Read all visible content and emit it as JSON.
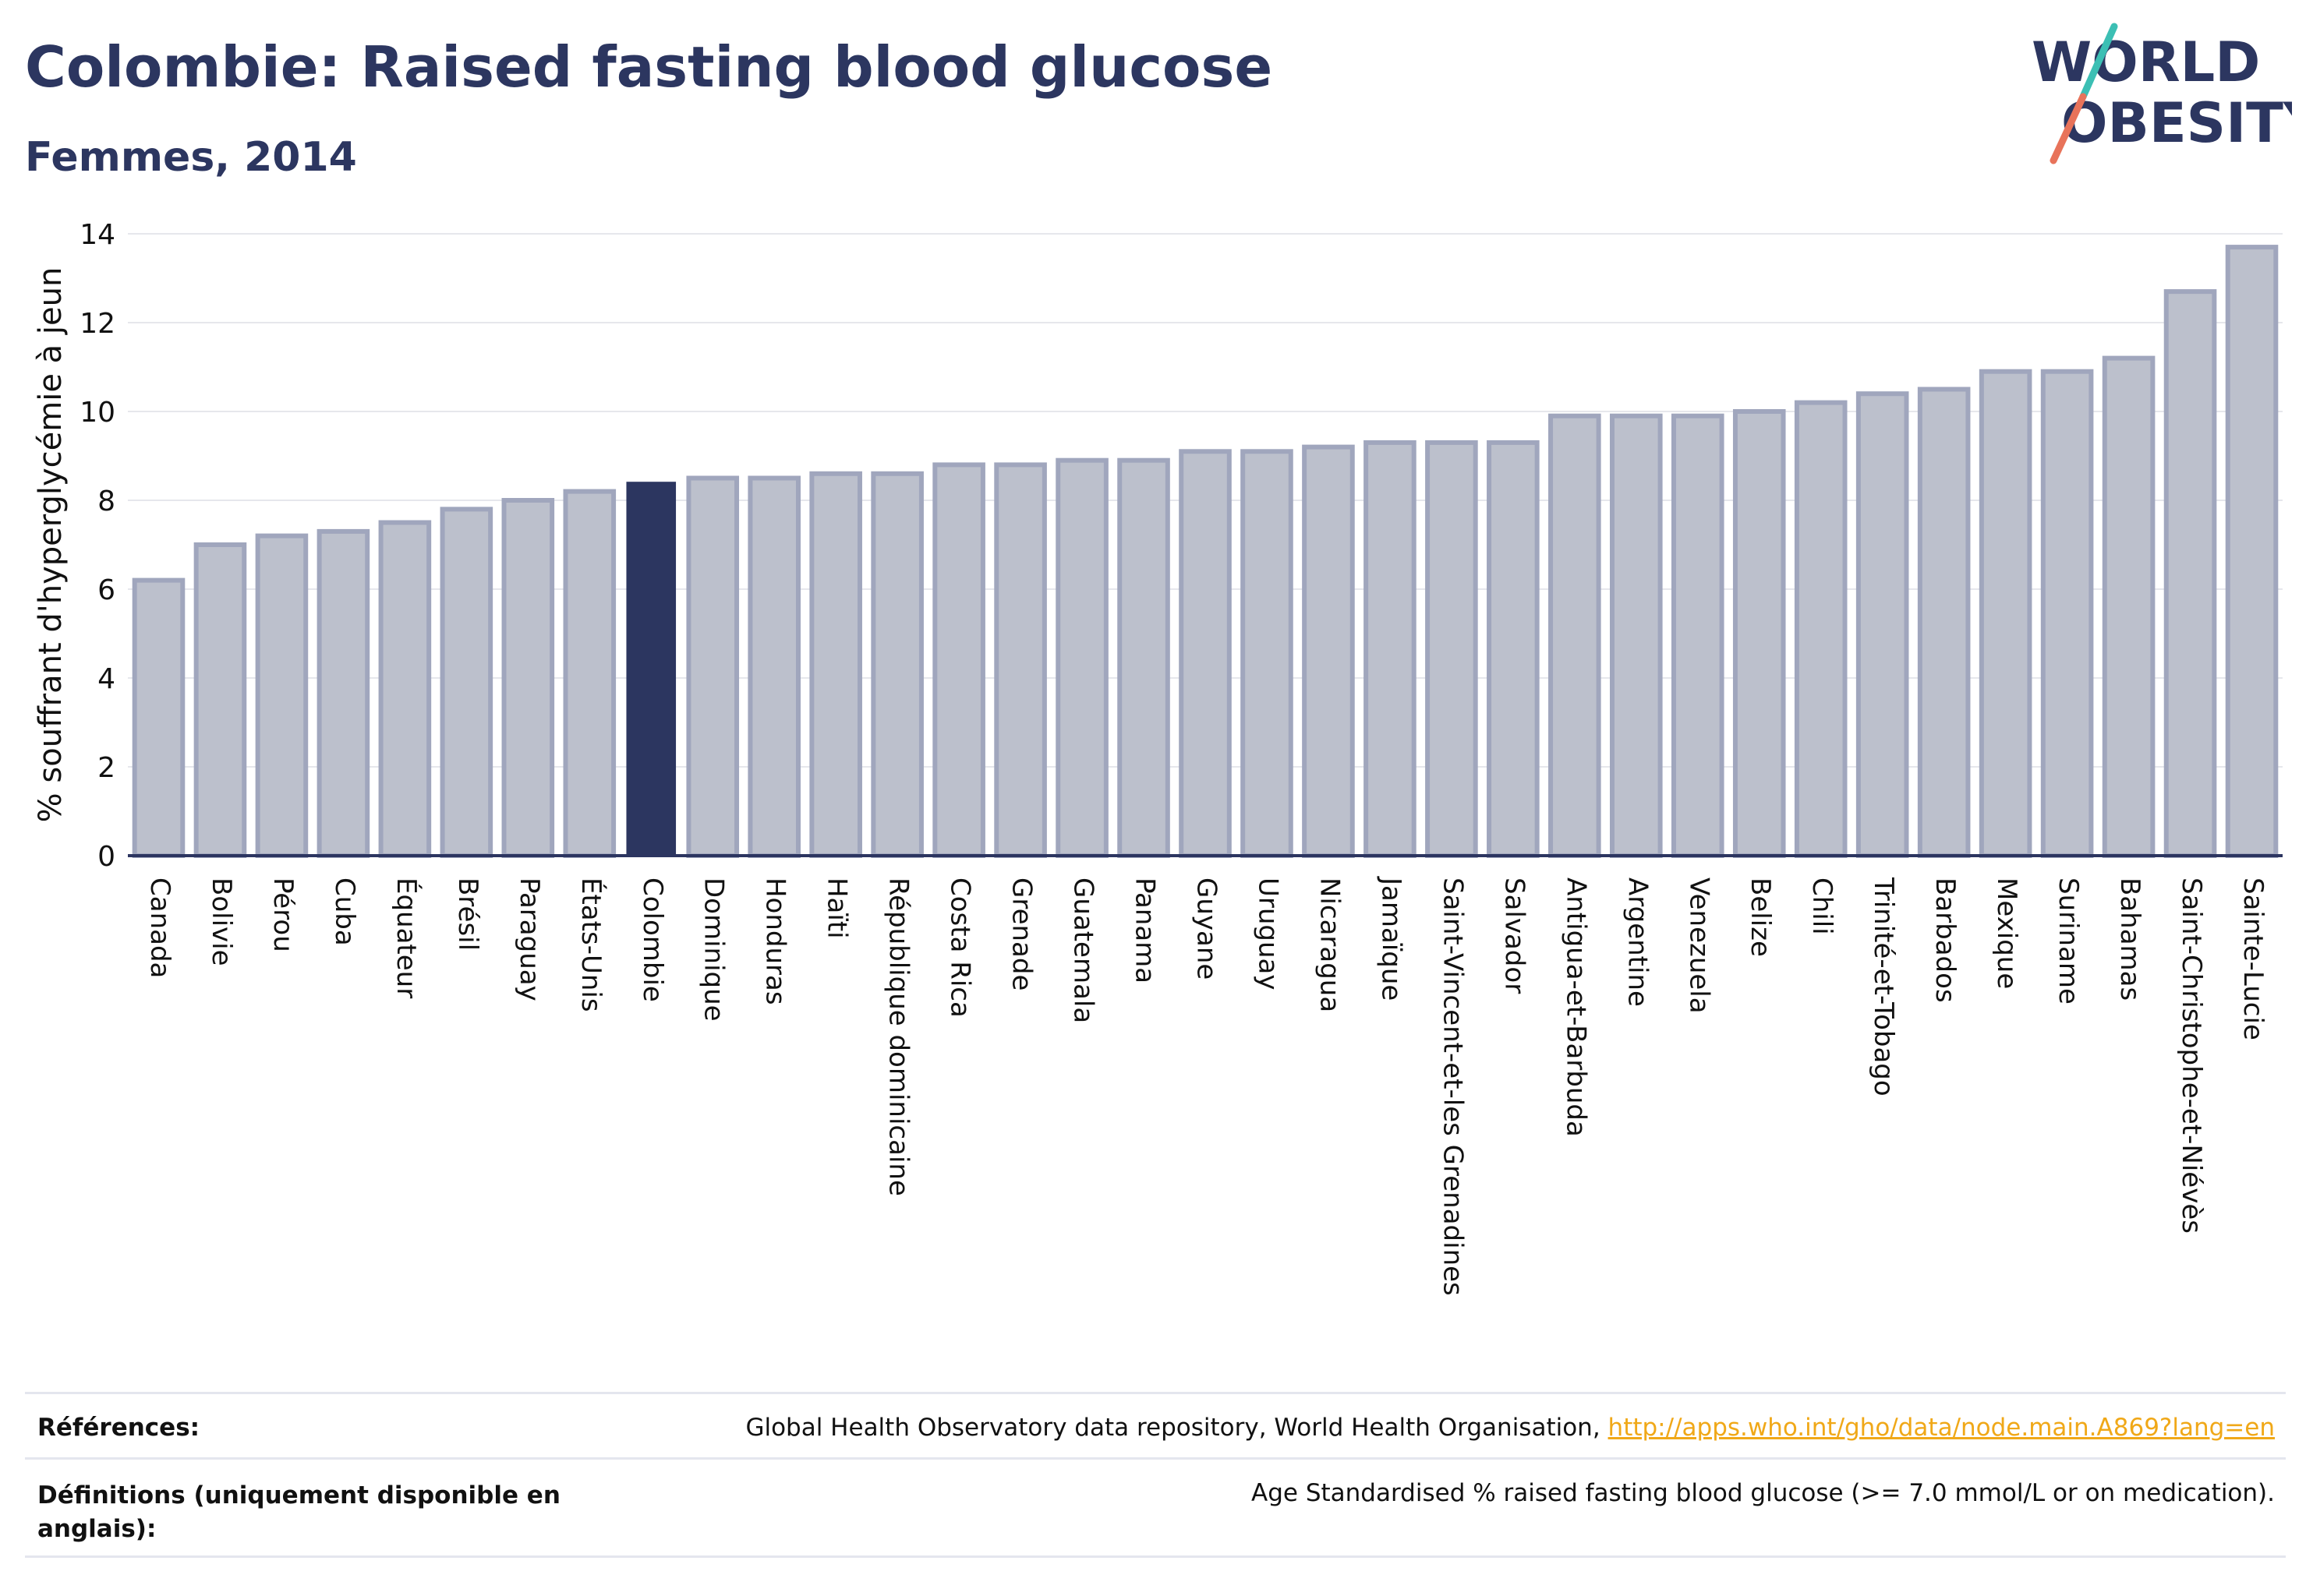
{
  "header": {
    "title": "Colombie: Raised fasting blood glucose",
    "subtitle": "Femmes, 2014"
  },
  "logo": {
    "line1": "WORLD",
    "line2": "OBESITY",
    "colors": {
      "text": "#2c3660",
      "slash_top": "#3cbfb4",
      "slash_bottom": "#e8735a"
    }
  },
  "colors": {
    "bar_fill": "#bcc0cc",
    "bar_stroke": "#a0a6bd",
    "highlight": "#2c3660",
    "grid": "#e6e7ec",
    "axis": "#2c3560"
  },
  "chart_data": {
    "type": "bar",
    "title": "Colombie: Raised fasting blood glucose",
    "subtitle": "Femmes, 2014",
    "xlabel": "",
    "ylabel": "% souffrant d'hyperglycémie à jeun",
    "ylim": [
      0,
      14
    ],
    "yticks": [
      0,
      2,
      4,
      6,
      8,
      10,
      12,
      14
    ],
    "grid": true,
    "highlight": "Colombie",
    "categories": [
      "Canada",
      "Bolivie",
      "Pérou",
      "Cuba",
      "Équateur",
      "Brésil",
      "Paraguay",
      "États-Unis",
      "Colombie",
      "Dominique",
      "Honduras",
      "Haïti",
      "République dominicaine",
      "Costa Rica",
      "Grenade",
      "Guatemala",
      "Panama",
      "Guyane",
      "Uruguay",
      "Nicaragua",
      "Jamaïque",
      "Saint-Vincent-et-les Grenadines",
      "Salvador",
      "Antigua-et-Barbuda",
      "Argentine",
      "Venezuela",
      "Belize",
      "Chili",
      "Trinité-et-Tobago",
      "Barbados",
      "Mexique",
      "Suriname",
      "Bahamas",
      "Saint-Christophe-et-Niévès",
      "Sainte-Lucie"
    ],
    "values": [
      6.2,
      7.0,
      7.2,
      7.3,
      7.5,
      7.8,
      8.0,
      8.2,
      8.4,
      8.5,
      8.5,
      8.6,
      8.6,
      8.8,
      8.8,
      8.9,
      8.9,
      9.1,
      9.1,
      9.2,
      9.3,
      9.3,
      9.3,
      9.9,
      9.9,
      9.9,
      10.0,
      10.2,
      10.4,
      10.5,
      10.9,
      10.9,
      11.2,
      12.7,
      13.7
    ]
  },
  "footer": {
    "references_label": "Références:",
    "references_text": "Global Health Observatory data repository, World Health Organisation,",
    "references_link": "http://apps.who.int/gho/data/node.main.A869?lang=en",
    "definitions_label": "Définitions (uniquement disponible en anglais):",
    "definitions_text": "Age Standardised % raised fasting blood glucose (>= 7.0 mmol/L or on medication)."
  }
}
